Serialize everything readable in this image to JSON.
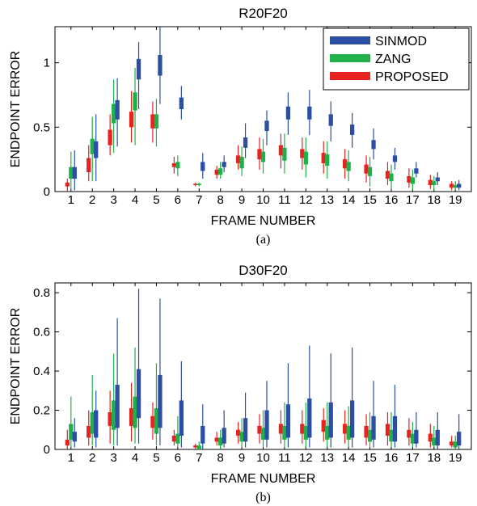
{
  "colors": {
    "SINMOD": "#2c4fa3",
    "ZANG": "#1fb04a",
    "PROPOSED": "#e8231f"
  },
  "chart_data": [
    {
      "type": "box",
      "title": "R20F20",
      "xlabel": "FRAME NUMBER",
      "ylabel": "ENDPOINT ERROR",
      "caption": "(a)",
      "categories": [
        "1",
        "2",
        "3",
        "4",
        "5",
        "6",
        "7",
        "8",
        "9",
        "10",
        "11",
        "12",
        "13",
        "14",
        "15",
        "16",
        "17",
        "18",
        "19"
      ],
      "ylim": [
        0,
        1.28
      ],
      "yticks": [
        "0",
        "0.5",
        "1"
      ],
      "legend": {
        "placement": "top-right",
        "entries": [
          "SINMOD",
          "ZANG",
          "PROPOSED"
        ]
      },
      "series": [
        {
          "name": "PROPOSED",
          "boxes": [
            {
              "q1": 0.04,
              "q3": 0.07,
              "lo": 0.0,
              "hi": 0.1
            },
            {
              "q1": 0.15,
              "q3": 0.26,
              "lo": 0.08,
              "hi": 0.36
            },
            {
              "q1": 0.36,
              "q3": 0.48,
              "lo": 0.28,
              "hi": 0.6
            },
            {
              "q1": 0.5,
              "q3": 0.62,
              "lo": 0.38,
              "hi": 0.78
            },
            {
              "q1": 0.49,
              "q3": 0.6,
              "lo": 0.38,
              "hi": 0.7
            },
            {
              "q1": 0.19,
              "q3": 0.22,
              "lo": 0.14,
              "hi": 0.27
            },
            {
              "q1": 0.05,
              "q3": 0.06,
              "lo": 0.04,
              "hi": 0.07
            },
            {
              "q1": 0.13,
              "q3": 0.17,
              "lo": 0.1,
              "hi": 0.2
            },
            {
              "q1": 0.22,
              "q3": 0.28,
              "lo": 0.17,
              "hi": 0.36
            },
            {
              "q1": 0.25,
              "q3": 0.33,
              "lo": 0.17,
              "hi": 0.42
            },
            {
              "q1": 0.28,
              "q3": 0.36,
              "lo": 0.18,
              "hi": 0.45
            },
            {
              "q1": 0.26,
              "q3": 0.33,
              "lo": 0.17,
              "hi": 0.42
            },
            {
              "q1": 0.22,
              "q3": 0.3,
              "lo": 0.14,
              "hi": 0.39
            },
            {
              "q1": 0.18,
              "q3": 0.25,
              "lo": 0.1,
              "hi": 0.33
            },
            {
              "q1": 0.14,
              "q3": 0.21,
              "lo": 0.07,
              "hi": 0.28
            },
            {
              "q1": 0.1,
              "q3": 0.16,
              "lo": 0.05,
              "hi": 0.23
            },
            {
              "q1": 0.07,
              "q3": 0.12,
              "lo": 0.03,
              "hi": 0.18
            },
            {
              "q1": 0.05,
              "q3": 0.09,
              "lo": 0.02,
              "hi": 0.13
            },
            {
              "q1": 0.03,
              "q3": 0.06,
              "lo": 0.01,
              "hi": 0.08
            }
          ]
        },
        {
          "name": "ZANG",
          "boxes": [
            {
              "q1": 0.1,
              "q3": 0.19,
              "lo": 0.02,
              "hi": 0.31
            },
            {
              "q1": 0.29,
              "q3": 0.41,
              "lo": 0.08,
              "hi": 0.58
            },
            {
              "q1": 0.53,
              "q3": 0.68,
              "lo": 0.3,
              "hi": 0.87
            },
            {
              "q1": 0.63,
              "q3": 0.77,
              "lo": 0.36,
              "hi": 0.96
            },
            {
              "q1": 0.49,
              "q3": 0.6,
              "lo": 0.35,
              "hi": 0.72
            },
            {
              "q1": 0.18,
              "q3": 0.23,
              "lo": 0.12,
              "hi": 0.28
            },
            {
              "q1": 0.05,
              "q3": 0.06,
              "lo": 0.04,
              "hi": 0.07
            },
            {
              "q1": 0.13,
              "q3": 0.18,
              "lo": 0.1,
              "hi": 0.23
            },
            {
              "q1": 0.18,
              "q3": 0.27,
              "lo": 0.12,
              "hi": 0.35
            },
            {
              "q1": 0.23,
              "q3": 0.31,
              "lo": 0.14,
              "hi": 0.41
            },
            {
              "q1": 0.24,
              "q3": 0.34,
              "lo": 0.14,
              "hi": 0.45
            },
            {
              "q1": 0.21,
              "q3": 0.31,
              "lo": 0.11,
              "hi": 0.42
            },
            {
              "q1": 0.2,
              "q3": 0.29,
              "lo": 0.1,
              "hi": 0.39
            },
            {
              "q1": 0.16,
              "q3": 0.23,
              "lo": 0.08,
              "hi": 0.32
            },
            {
              "q1": 0.12,
              "q3": 0.19,
              "lo": 0.04,
              "hi": 0.27
            },
            {
              "q1": 0.08,
              "q3": 0.14,
              "lo": 0.02,
              "hi": 0.21
            },
            {
              "q1": 0.06,
              "q3": 0.11,
              "lo": 0.01,
              "hi": 0.17
            },
            {
              "q1": 0.05,
              "q3": 0.08,
              "lo": 0.01,
              "hi": 0.12
            },
            {
              "q1": 0.03,
              "q3": 0.05,
              "lo": 0.01,
              "hi": 0.08
            }
          ]
        },
        {
          "name": "SINMOD",
          "boxes": [
            {
              "q1": 0.1,
              "q3": 0.19,
              "lo": 0.01,
              "hi": 0.32
            },
            {
              "q1": 0.26,
              "q3": 0.39,
              "lo": 0.08,
              "hi": 0.6
            },
            {
              "q1": 0.56,
              "q3": 0.71,
              "lo": 0.35,
              "hi": 0.88
            },
            {
              "q1": 0.87,
              "q3": 1.03,
              "lo": 0.64,
              "hi": 1.16
            },
            {
              "q1": 0.9,
              "q3": 1.06,
              "lo": 0.68,
              "hi": 1.3
            },
            {
              "q1": 0.64,
              "q3": 0.73,
              "lo": 0.56,
              "hi": 0.82
            },
            {
              "q1": 0.16,
              "q3": 0.23,
              "lo": 0.1,
              "hi": 0.3
            },
            {
              "q1": 0.19,
              "q3": 0.23,
              "lo": 0.15,
              "hi": 0.28
            },
            {
              "q1": 0.34,
              "q3": 0.42,
              "lo": 0.26,
              "hi": 0.53
            },
            {
              "q1": 0.47,
              "q3": 0.55,
              "lo": 0.36,
              "hi": 0.63
            },
            {
              "q1": 0.56,
              "q3": 0.66,
              "lo": 0.44,
              "hi": 0.77
            },
            {
              "q1": 0.56,
              "q3": 0.66,
              "lo": 0.44,
              "hi": 0.79
            },
            {
              "q1": 0.51,
              "q3": 0.6,
              "lo": 0.39,
              "hi": 0.7
            },
            {
              "q1": 0.44,
              "q3": 0.52,
              "lo": 0.34,
              "hi": 0.61
            },
            {
              "q1": 0.33,
              "q3": 0.4,
              "lo": 0.25,
              "hi": 0.49
            },
            {
              "q1": 0.23,
              "q3": 0.28,
              "lo": 0.17,
              "hi": 0.34
            },
            {
              "q1": 0.14,
              "q3": 0.18,
              "lo": 0.11,
              "hi": 0.23
            },
            {
              "q1": 0.08,
              "q3": 0.11,
              "lo": 0.05,
              "hi": 0.15
            },
            {
              "q1": 0.03,
              "q3": 0.06,
              "lo": 0.01,
              "hi": 0.09
            }
          ]
        }
      ]
    },
    {
      "type": "box",
      "title": "D30F20",
      "xlabel": "FRAME NUMBER",
      "ylabel": "ENDPOINT ERROR",
      "caption": "(b)",
      "categories": [
        "1",
        "2",
        "3",
        "4",
        "5",
        "6",
        "7",
        "8",
        "9",
        "10",
        "11",
        "12",
        "13",
        "14",
        "15",
        "16",
        "17",
        "18",
        "19"
      ],
      "ylim": [
        0,
        0.85
      ],
      "yticks": [
        "0",
        "0.2",
        "0.4",
        "0.6",
        "0.8"
      ],
      "series": [
        {
          "name": "PROPOSED",
          "boxes": [
            {
              "q1": 0.02,
              "q3": 0.05,
              "lo": 0.0,
              "hi": 0.1
            },
            {
              "q1": 0.06,
              "q3": 0.12,
              "lo": 0.02,
              "hi": 0.2
            },
            {
              "q1": 0.12,
              "q3": 0.19,
              "lo": 0.03,
              "hi": 0.3
            },
            {
              "q1": 0.12,
              "q3": 0.21,
              "lo": 0.04,
              "hi": 0.34
            },
            {
              "q1": 0.11,
              "q3": 0.17,
              "lo": 0.05,
              "hi": 0.24
            },
            {
              "q1": 0.04,
              "q3": 0.07,
              "lo": 0.02,
              "hi": 0.1
            },
            {
              "q1": 0.01,
              "q3": 0.02,
              "lo": 0.0,
              "hi": 0.03
            },
            {
              "q1": 0.04,
              "q3": 0.06,
              "lo": 0.02,
              "hi": 0.09
            },
            {
              "q1": 0.07,
              "q3": 0.1,
              "lo": 0.03,
              "hi": 0.14
            },
            {
              "q1": 0.08,
              "q3": 0.12,
              "lo": 0.03,
              "hi": 0.18
            },
            {
              "q1": 0.08,
              "q3": 0.13,
              "lo": 0.03,
              "hi": 0.2
            },
            {
              "q1": 0.08,
              "q3": 0.13,
              "lo": 0.03,
              "hi": 0.2
            },
            {
              "q1": 0.09,
              "q3": 0.15,
              "lo": 0.04,
              "hi": 0.21
            },
            {
              "q1": 0.08,
              "q3": 0.13,
              "lo": 0.03,
              "hi": 0.2
            },
            {
              "q1": 0.06,
              "q3": 0.12,
              "lo": 0.02,
              "hi": 0.18
            },
            {
              "q1": 0.07,
              "q3": 0.13,
              "lo": 0.02,
              "hi": 0.19
            },
            {
              "q1": 0.06,
              "q3": 0.1,
              "lo": 0.02,
              "hi": 0.16
            },
            {
              "q1": 0.04,
              "q3": 0.08,
              "lo": 0.01,
              "hi": 0.13
            },
            {
              "q1": 0.02,
              "q3": 0.04,
              "lo": 0.01,
              "hi": 0.07
            }
          ]
        },
        {
          "name": "ZANG",
          "boxes": [
            {
              "q1": 0.05,
              "q3": 0.13,
              "lo": 0.01,
              "hi": 0.27
            },
            {
              "q1": 0.08,
              "q3": 0.19,
              "lo": 0.02,
              "hi": 0.38
            },
            {
              "q1": 0.1,
              "q3": 0.25,
              "lo": 0.02,
              "hi": 0.49
            },
            {
              "q1": 0.11,
              "q3": 0.27,
              "lo": 0.03,
              "hi": 0.52
            },
            {
              "q1": 0.08,
              "q3": 0.21,
              "lo": 0.02,
              "hi": 0.44
            },
            {
              "q1": 0.03,
              "q3": 0.08,
              "lo": 0.01,
              "hi": 0.17
            },
            {
              "q1": 0.0,
              "q3": 0.02,
              "lo": 0.0,
              "hi": 0.04
            },
            {
              "q1": 0.02,
              "q3": 0.06,
              "lo": 0.0,
              "hi": 0.1
            },
            {
              "q1": 0.04,
              "q3": 0.09,
              "lo": 0.01,
              "hi": 0.16
            },
            {
              "q1": 0.05,
              "q3": 0.11,
              "lo": 0.01,
              "hi": 0.2
            },
            {
              "q1": 0.05,
              "q3": 0.12,
              "lo": 0.01,
              "hi": 0.24
            },
            {
              "q1": 0.05,
              "q3": 0.12,
              "lo": 0.01,
              "hi": 0.24
            },
            {
              "q1": 0.05,
              "q3": 0.12,
              "lo": 0.01,
              "hi": 0.24
            },
            {
              "q1": 0.05,
              "q3": 0.12,
              "lo": 0.01,
              "hi": 0.22
            },
            {
              "q1": 0.04,
              "q3": 0.1,
              "lo": 0.01,
              "hi": 0.19
            },
            {
              "q1": 0.04,
              "q3": 0.1,
              "lo": 0.01,
              "hi": 0.19
            },
            {
              "q1": 0.03,
              "q3": 0.08,
              "lo": 0.01,
              "hi": 0.14
            },
            {
              "q1": 0.02,
              "q3": 0.06,
              "lo": 0.01,
              "hi": 0.12
            },
            {
              "q1": 0.01,
              "q3": 0.04,
              "lo": 0.0,
              "hi": 0.07
            }
          ]
        },
        {
          "name": "SINMOD",
          "boxes": [
            {
              "q1": 0.04,
              "q3": 0.09,
              "lo": 0.01,
              "hi": 0.16
            },
            {
              "q1": 0.06,
              "q3": 0.2,
              "lo": 0.01,
              "hi": 0.3
            },
            {
              "q1": 0.11,
              "q3": 0.33,
              "lo": 0.02,
              "hi": 0.67
            },
            {
              "q1": 0.16,
              "q3": 0.41,
              "lo": 0.03,
              "hi": 0.82
            },
            {
              "q1": 0.11,
              "q3": 0.38,
              "lo": 0.02,
              "hi": 0.77
            },
            {
              "q1": 0.07,
              "q3": 0.25,
              "lo": 0.01,
              "hi": 0.45
            },
            {
              "q1": 0.03,
              "q3": 0.12,
              "lo": 0.0,
              "hi": 0.23
            },
            {
              "q1": 0.03,
              "q3": 0.11,
              "lo": 0.01,
              "hi": 0.2
            },
            {
              "q1": 0.04,
              "q3": 0.16,
              "lo": 0.01,
              "hi": 0.29
            },
            {
              "q1": 0.05,
              "q3": 0.2,
              "lo": 0.01,
              "hi": 0.35
            },
            {
              "q1": 0.06,
              "q3": 0.23,
              "lo": 0.01,
              "hi": 0.44
            },
            {
              "q1": 0.06,
              "q3": 0.26,
              "lo": 0.01,
              "hi": 0.53
            },
            {
              "q1": 0.06,
              "q3": 0.24,
              "lo": 0.01,
              "hi": 0.49
            },
            {
              "q1": 0.06,
              "q3": 0.25,
              "lo": 0.01,
              "hi": 0.52
            },
            {
              "q1": 0.05,
              "q3": 0.17,
              "lo": 0.01,
              "hi": 0.35
            },
            {
              "q1": 0.04,
              "q3": 0.17,
              "lo": 0.01,
              "hi": 0.33
            },
            {
              "q1": 0.03,
              "q3": 0.1,
              "lo": 0.01,
              "hi": 0.19
            },
            {
              "q1": 0.02,
              "q3": 0.1,
              "lo": 0.0,
              "hi": 0.19
            },
            {
              "q1": 0.02,
              "q3": 0.09,
              "lo": 0.0,
              "hi": 0.18
            }
          ]
        }
      ]
    }
  ]
}
